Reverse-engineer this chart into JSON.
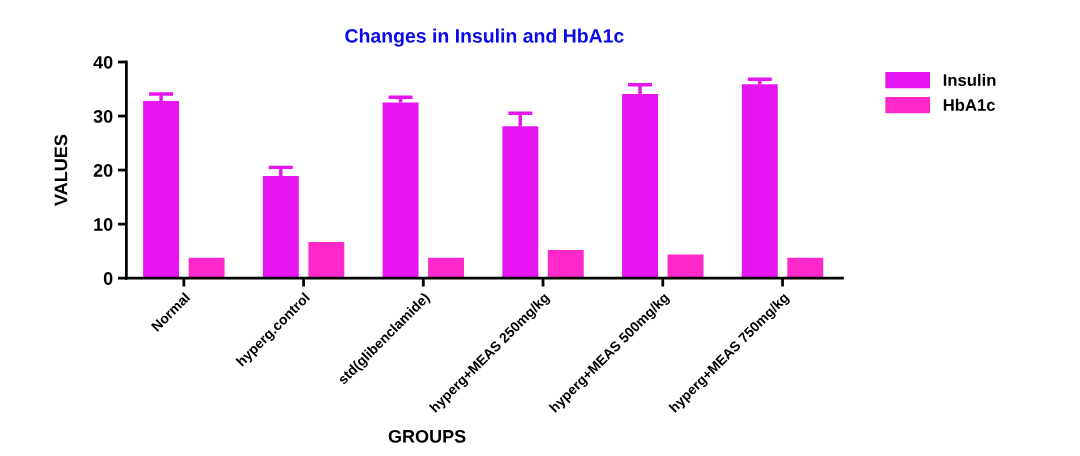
{
  "chart_data": {
    "type": "bar",
    "title": "Changes in Insulin and HbA1c",
    "xlabel": "GROUPS",
    "ylabel": "VALUES",
    "categories": [
      "Normal",
      "hyperg.control",
      "std(glibenclamide)",
      "hyperg+MEAS 250mg/kg",
      "hyperg+MEAS 500mg/kg",
      "hyperg+MEAS 750mg/kg"
    ],
    "series": [
      {
        "name": "Insulin",
        "color": "#e614f0",
        "values": [
          32.8,
          18.9,
          32.5,
          28.1,
          34.1,
          35.9
        ],
        "errors": [
          [
            32.8,
            34.1
          ],
          [
            18.9,
            20.5
          ],
          [
            32.5,
            33.5
          ],
          [
            28.1,
            30.5
          ],
          [
            34.1,
            35.8
          ],
          [
            35.9,
            36.8
          ]
        ]
      },
      {
        "name": "HbA1c",
        "color": "#ff28c8",
        "values": [
          3.8,
          6.7,
          3.8,
          5.2,
          4.4,
          3.8
        ]
      }
    ],
    "ylim": [
      0,
      40
    ],
    "yticks": [
      0,
      10,
      20,
      30,
      40
    ],
    "legend": "top right"
  }
}
